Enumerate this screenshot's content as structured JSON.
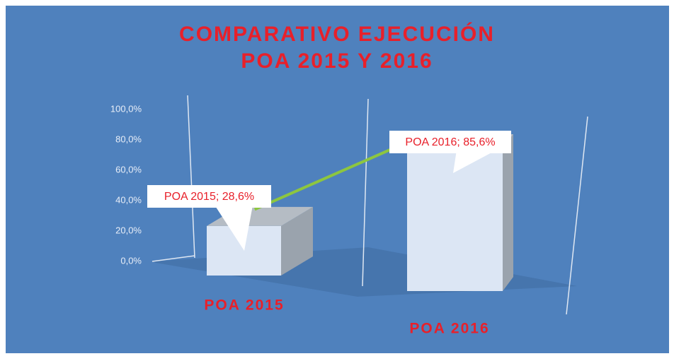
{
  "chart_data": {
    "type": "bar",
    "title": [
      "COMPARATIVO  EJECUCIÓN",
      "POA 2015 Y 2016"
    ],
    "categories": [
      "POA 2015",
      "POA 2016"
    ],
    "values": [
      28.6,
      85.6
    ],
    "value_labels": [
      "POA 2015; 28,6%",
      "POA 2016; 85,6%"
    ],
    "color": "#dce6f4",
    "line_color": "#8dc63f",
    "ylim": [
      0,
      100
    ],
    "yticks": [
      {
        "value": 0,
        "label": "0,0%"
      },
      {
        "value": 20,
        "label": "20,0%"
      },
      {
        "value": 40,
        "label": "40,0%"
      },
      {
        "value": 60,
        "label": "60,0%"
      },
      {
        "value": 80,
        "label": "80,0%"
      },
      {
        "value": 100,
        "label": "100,0%"
      }
    ]
  }
}
